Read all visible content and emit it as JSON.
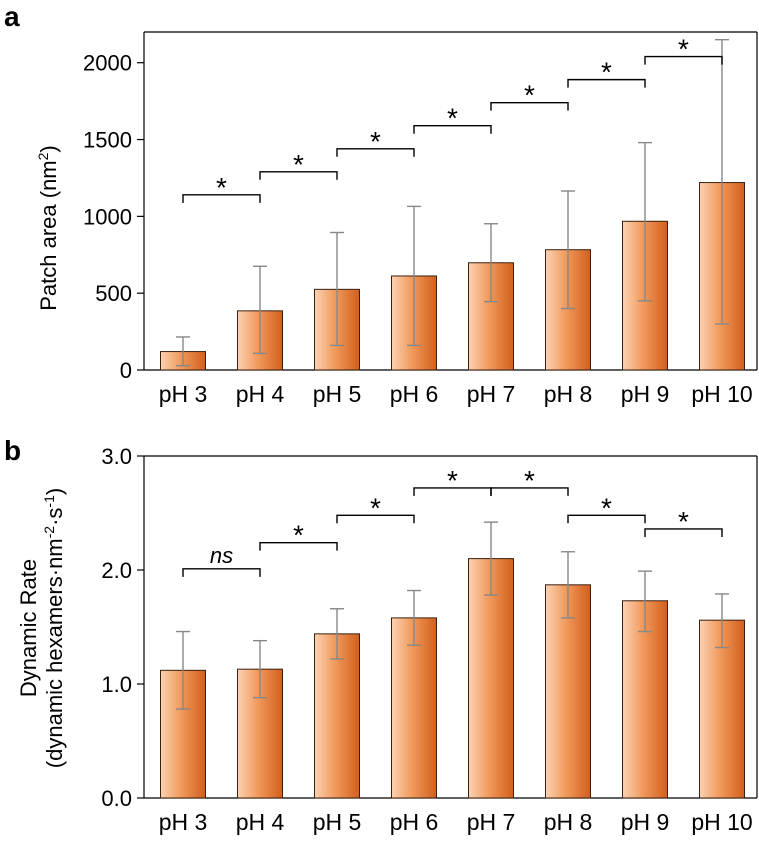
{
  "chart_data": [
    {
      "panel": "a",
      "type": "bar",
      "categories": [
        "pH 3",
        "pH 4",
        "pH 5",
        "pH 6",
        "pH 7",
        "pH 8",
        "pH 9",
        "pH 10"
      ],
      "values": [
        120,
        385,
        525,
        612,
        698,
        783,
        968,
        1220
      ],
      "error_low": [
        28,
        108,
        160,
        160,
        445,
        400,
        450,
        300
      ],
      "error_high": [
        215,
        675,
        895,
        1065,
        952,
        1165,
        1480,
        2150
      ],
      "ylabel": "Patch area (nm",
      "ylabel_sup": "2",
      "ylabel_end": ")",
      "ylim": [
        0,
        2000
      ],
      "yticks": [
        "0",
        "500",
        "1000",
        "1500",
        "2000"
      ],
      "ytick_values": [
        0,
        500,
        1000,
        1500,
        2000
      ],
      "significance": [
        {
          "from": 0,
          "to": 1,
          "y": 1140,
          "label": "*"
        },
        {
          "from": 1,
          "to": 2,
          "y": 1290,
          "label": "*"
        },
        {
          "from": 2,
          "to": 3,
          "y": 1440,
          "label": "*"
        },
        {
          "from": 3,
          "to": 4,
          "y": 1590,
          "label": "*"
        },
        {
          "from": 4,
          "to": 5,
          "y": 1740,
          "label": "*"
        },
        {
          "from": 5,
          "to": 6,
          "y": 1890,
          "label": "*"
        },
        {
          "from": 6,
          "to": 7,
          "y": 2040,
          "label": "*"
        }
      ],
      "bar_color_light": "#fbd2b4",
      "bar_color_dark": "#d25f1c"
    },
    {
      "panel": "b",
      "type": "bar",
      "categories": [
        "pH 3",
        "pH 4",
        "pH 5",
        "pH 6",
        "pH 7",
        "pH 8",
        "pH 9",
        "pH 10"
      ],
      "values": [
        1.12,
        1.13,
        1.44,
        1.58,
        2.1,
        1.87,
        1.73,
        1.56
      ],
      "error_low": [
        0.78,
        0.88,
        1.22,
        1.34,
        1.78,
        1.58,
        1.46,
        1.32
      ],
      "error_high": [
        1.46,
        1.38,
        1.66,
        1.82,
        2.42,
        2.16,
        1.99,
        1.79
      ],
      "ylabel": "Dynamic Rate",
      "ylabel2": "(dynamic hexamers·nm",
      "ylabel2_sup1": "-2",
      "ylabel2_mid": "·s",
      "ylabel2_sup2": "-1",
      "ylabel2_end": ")",
      "ylim": [
        0,
        3.0
      ],
      "yticks": [
        "0.0",
        "1.0",
        "2.0",
        "3.0"
      ],
      "ytick_values": [
        0,
        1,
        2,
        3
      ],
      "significance": [
        {
          "from": 0,
          "to": 1,
          "y": 2.01,
          "label": "ns"
        },
        {
          "from": 1,
          "to": 2,
          "y": 2.24,
          "label": "*"
        },
        {
          "from": 2,
          "to": 3,
          "y": 2.48,
          "label": "*"
        },
        {
          "from": 3,
          "to": 4,
          "y": 2.72,
          "label": "*"
        },
        {
          "from": 4,
          "to": 5,
          "y": 2.72,
          "label": "*"
        },
        {
          "from": 5,
          "to": 6,
          "y": 2.48,
          "label": "*"
        },
        {
          "from": 6,
          "to": 7,
          "y": 2.36,
          "label": "*"
        }
      ],
      "bar_color_light": "#fbd2b4",
      "bar_color_dark": "#d25f1c"
    }
  ]
}
